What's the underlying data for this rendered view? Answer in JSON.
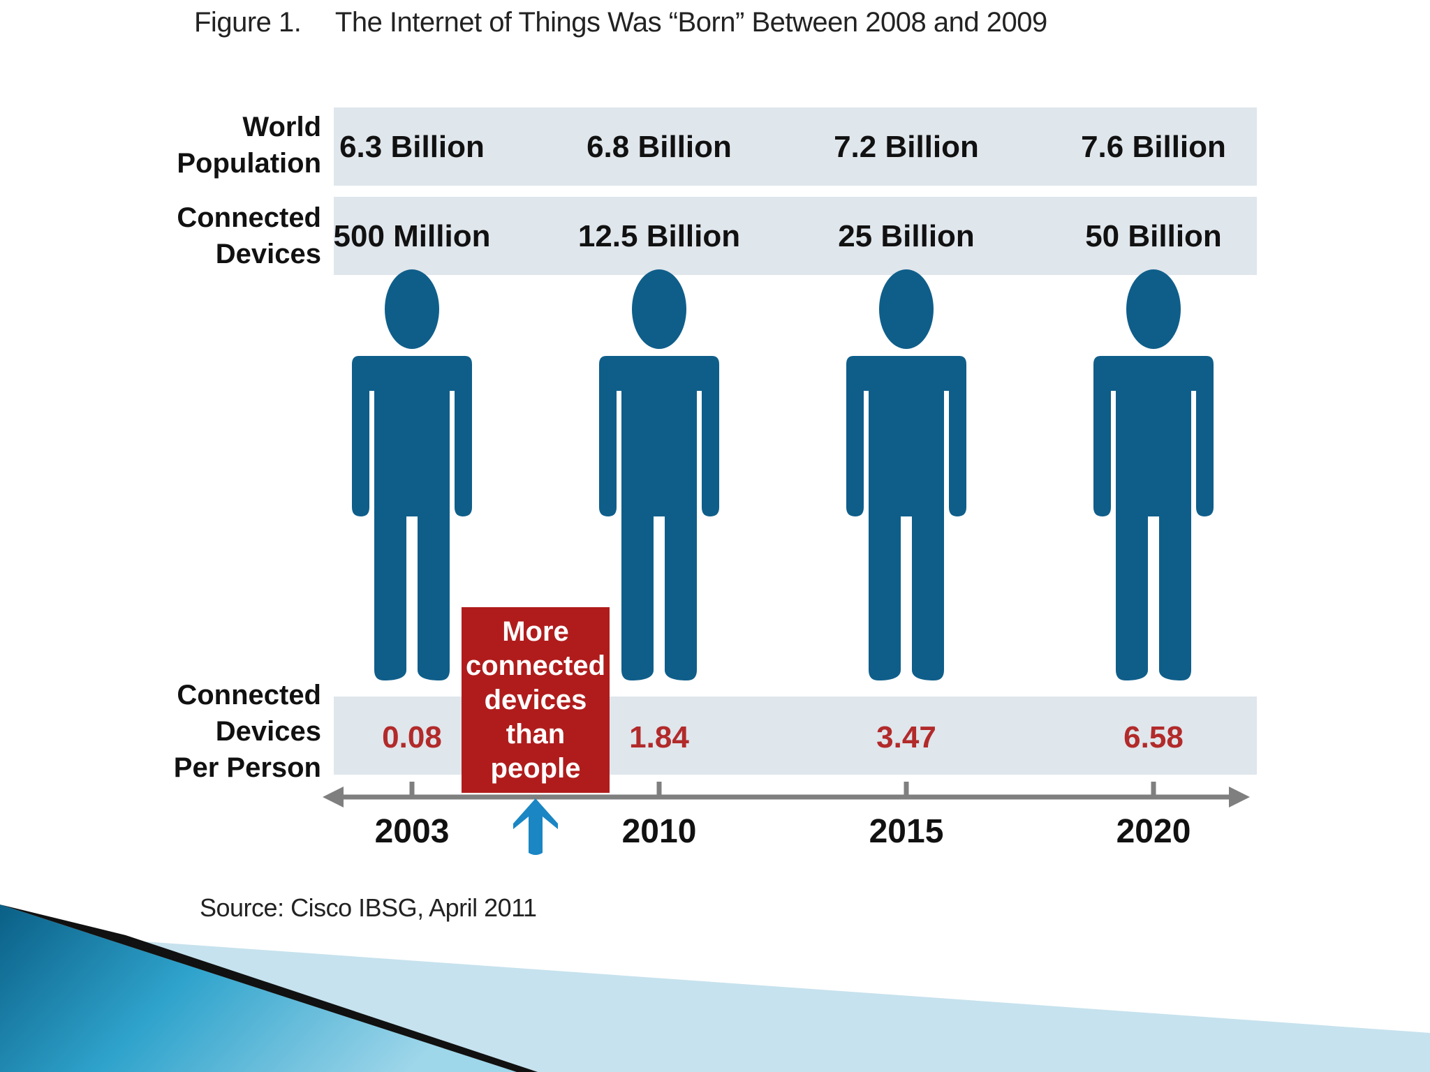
{
  "figure_label": "Figure 1.",
  "figure_title": "The Internet of Things Was “Born” Between 2008 and 2009",
  "source": "Source: Cisco IBSG, April 2011",
  "colors": {
    "band": "#dfe6ec",
    "person": "#0f5e8a",
    "ratio_text": "#b22a2a",
    "callout_bg": "#b01c1c",
    "callout_text": "#ffffff",
    "axis": "#7f7f7f",
    "arrow_up": "#1a86c4",
    "row_label": "#111111"
  },
  "chart_data": {
    "type": "table",
    "title": "The Internet of Things Was “Born” Between 2008 and 2009",
    "categories": [
      "2003",
      "2010",
      "2015",
      "2020"
    ],
    "rows": [
      {
        "label_lines": [
          "World",
          "Population"
        ],
        "values": [
          "6.3 Billion",
          "6.8 Billion",
          "7.2 Billion",
          "7.6 Billion"
        ]
      },
      {
        "label_lines": [
          "Connected",
          "Devices"
        ],
        "values": [
          "500 Million",
          "12.5 Billion",
          "25 Billion",
          "50 Billion"
        ]
      },
      {
        "label_lines": [
          "Connected",
          "Devices",
          "Per Person"
        ],
        "values": [
          "0.08",
          "1.84",
          "3.47",
          "6.58"
        ]
      }
    ],
    "series": [
      {
        "name": "World Population (billions)",
        "values": [
          6.3,
          6.8,
          7.2,
          7.6
        ]
      },
      {
        "name": "Connected Devices (billions)",
        "values": [
          0.5,
          12.5,
          25,
          50
        ]
      },
      {
        "name": "Connected Devices Per Person",
        "values": [
          0.08,
          1.84,
          3.47,
          6.58
        ]
      }
    ],
    "annotation": {
      "text_lines": [
        "More",
        "connected",
        "devices",
        "than",
        "people"
      ],
      "between": [
        "2003",
        "2010"
      ]
    }
  }
}
